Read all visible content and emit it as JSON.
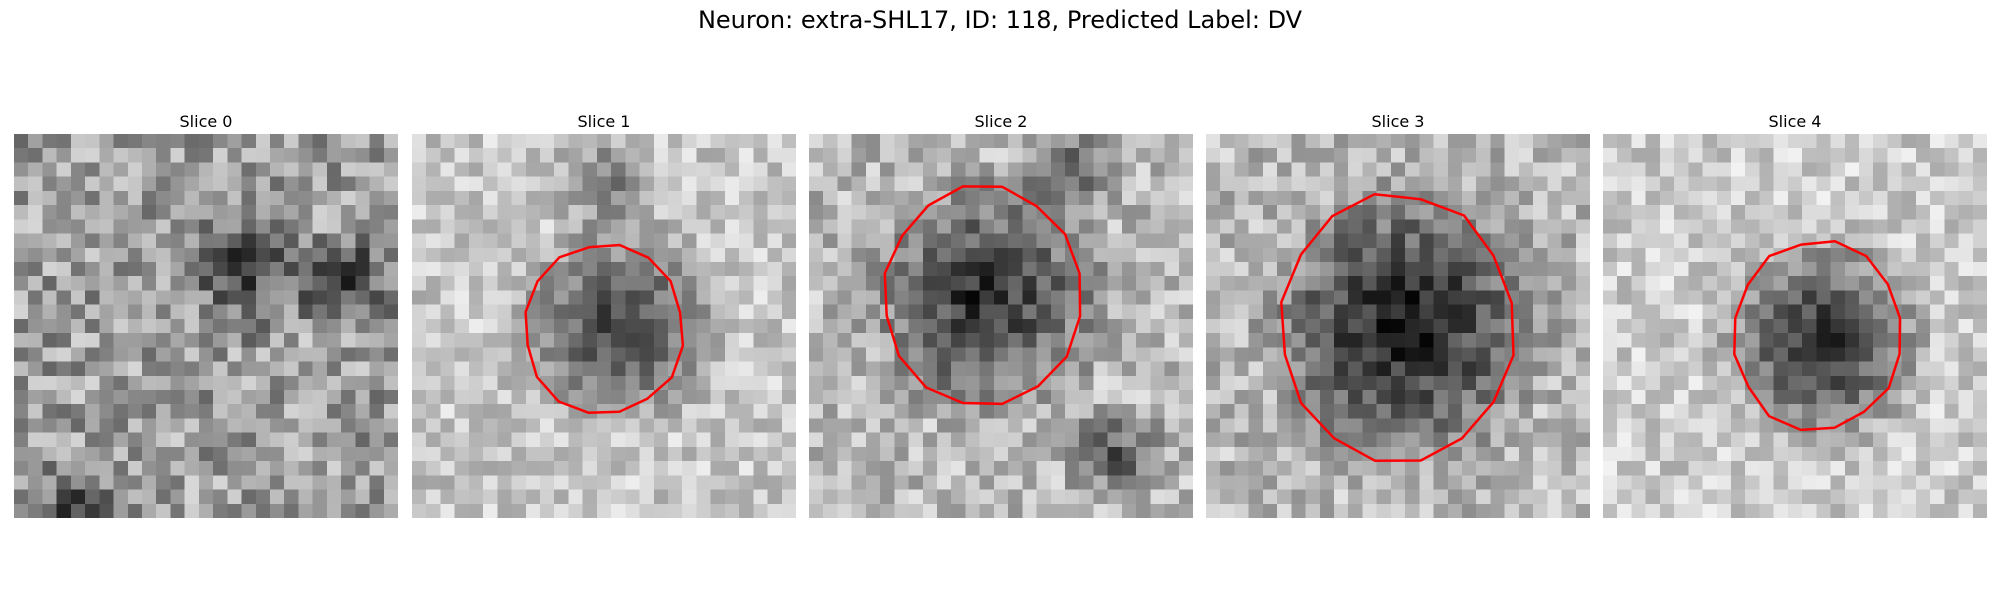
{
  "figure": {
    "title": "Neuron: extra-SHL17, ID: 118, Predicted Label: DV"
  },
  "colors": {
    "contour": "#ff0000",
    "background": "#ffffff"
  },
  "panels": [
    {
      "title": "Slice 0"
    },
    {
      "title": "Slice 1"
    },
    {
      "title": "Slice 2"
    },
    {
      "title": "Slice 3"
    },
    {
      "title": "Slice 4"
    }
  ]
}
